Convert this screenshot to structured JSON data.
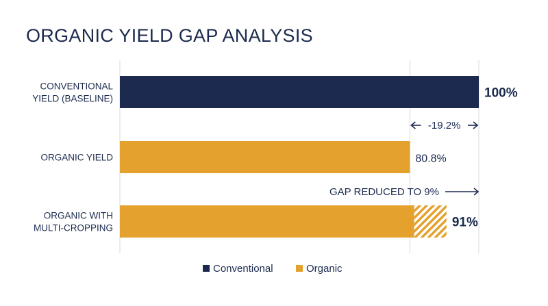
{
  "chart_data": {
    "type": "bar",
    "orientation": "horizontal",
    "title": "ORGANIC YIELD GAP ANALYSIS",
    "xlim": [
      0,
      100
    ],
    "grid": true,
    "categories": [
      [
        "CONVENTIONAL",
        "YIELD (BASELINE)"
      ],
      [
        "ORGANIC YIELD"
      ],
      [
        "ORGANIC WITH",
        "MULTI-CROPPING"
      ]
    ],
    "bars": [
      {
        "value": 100,
        "series": "Conventional",
        "label": "100%",
        "label_weight": "bold"
      },
      {
        "value": 80.8,
        "series": "Organic",
        "label": "80.8%",
        "label_weight": "normal"
      },
      {
        "value": 91,
        "series": "Organic",
        "label": "91%",
        "label_weight": "bold",
        "hatched_from": 82
      }
    ],
    "annotations": [
      {
        "text": "-19.2%",
        "type": "double-arrow",
        "from": 80.8,
        "to": 100
      },
      {
        "text": "GAP REDUCED TO 9%",
        "type": "right-arrow",
        "to": 100
      }
    ],
    "legend": {
      "placement": "bottom-center",
      "items": [
        {
          "name": "Conventional",
          "color": "#1b2a4e"
        },
        {
          "name": "Organic",
          "color": "#e5a12e"
        }
      ]
    }
  }
}
